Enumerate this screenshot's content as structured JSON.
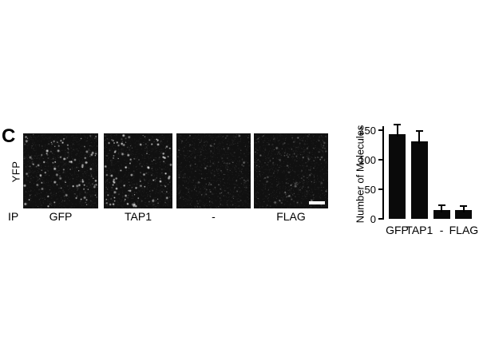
{
  "figure": {
    "panel_label": "C",
    "row_label": "YFP",
    "ip_label": "IP",
    "micrographs": [
      {
        "name": "GFP",
        "label": "GFP",
        "bright_dots": 85,
        "dim_dots": 120,
        "dot_brightness": 1.0,
        "seed": 11,
        "scale_bar": false
      },
      {
        "name": "TAP1",
        "label": "TAP1",
        "bright_dots": 90,
        "dim_dots": 120,
        "dot_brightness": 1.0,
        "seed": 27,
        "scale_bar": false
      },
      {
        "name": "minus",
        "label": "-",
        "bright_dots": 13,
        "dim_dots": 170,
        "dot_brightness": 0.5,
        "seed": 39,
        "scale_bar": false
      },
      {
        "name": "FLAG",
        "label": "FLAG",
        "bright_dots": 42,
        "dim_dots": 170,
        "dot_brightness": 0.45,
        "seed": 53,
        "scale_bar": true
      }
    ],
    "panel_background": "#101010",
    "dot_color": "#ffffff"
  },
  "chart_data": {
    "type": "bar",
    "title": "",
    "xlabel": "",
    "ylabel": "Number of Molecules",
    "categories": [
      "GFP",
      "TAP1",
      "-",
      "FLAG"
    ],
    "values": [
      143,
      131,
      15,
      15
    ],
    "errors": [
      16,
      17,
      8,
      7
    ],
    "yticks": [
      0,
      50,
      100,
      150
    ],
    "ylim": [
      0,
      160
    ],
    "grid": false,
    "legend": false,
    "bar_color": "#0a0a0a",
    "axis_color": "#000000"
  }
}
